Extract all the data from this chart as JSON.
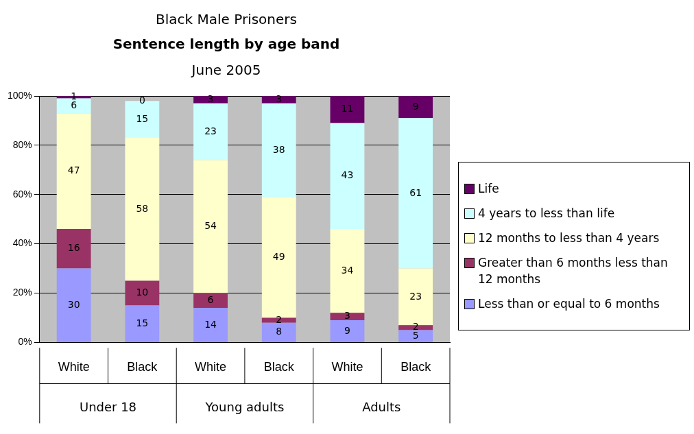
{
  "chart_data": {
    "type": "bar",
    "stacked": true,
    "title": "Sentence length by age band",
    "subtitle": "June 2005",
    "annotations": [
      "Black Male Prisoners",
      "Under 18",
      "Young adults",
      "Adults"
    ],
    "categories": [
      "White",
      "Black",
      "White",
      "Black",
      "White",
      "Black"
    ],
    "series": [
      {
        "name": "Less than or equal to 6 months",
        "color": "#9999ff",
        "values": [
          30,
          15,
          14,
          8,
          9,
          5
        ]
      },
      {
        "name": "Greater than 6 months less than 12 months",
        "color": "#993366",
        "values": [
          16,
          10,
          6,
          2,
          3,
          2
        ]
      },
      {
        "name": "12 months to less than 4 years",
        "color": "#ffffcc",
        "values": [
          47,
          58,
          54,
          49,
          34,
          23
        ]
      },
      {
        "name": "4 years to less than life",
        "color": "#ccffff",
        "values": [
          6,
          15,
          23,
          38,
          43,
          61
        ]
      },
      {
        "name": "Life",
        "color": "#660066",
        "values": [
          1,
          0,
          3,
          3,
          11,
          9
        ]
      }
    ],
    "ylim": [
      0,
      100
    ],
    "yticks": [
      {
        "value": 0,
        "label": "0%"
      },
      {
        "value": 20,
        "label": "20%"
      },
      {
        "value": 40,
        "label": "40%"
      },
      {
        "value": 60,
        "label": "60%"
      },
      {
        "value": 80,
        "label": "80%"
      },
      {
        "value": 100,
        "label": "100%"
      }
    ],
    "grid": "y",
    "legend": "right",
    "data_labels": true
  }
}
